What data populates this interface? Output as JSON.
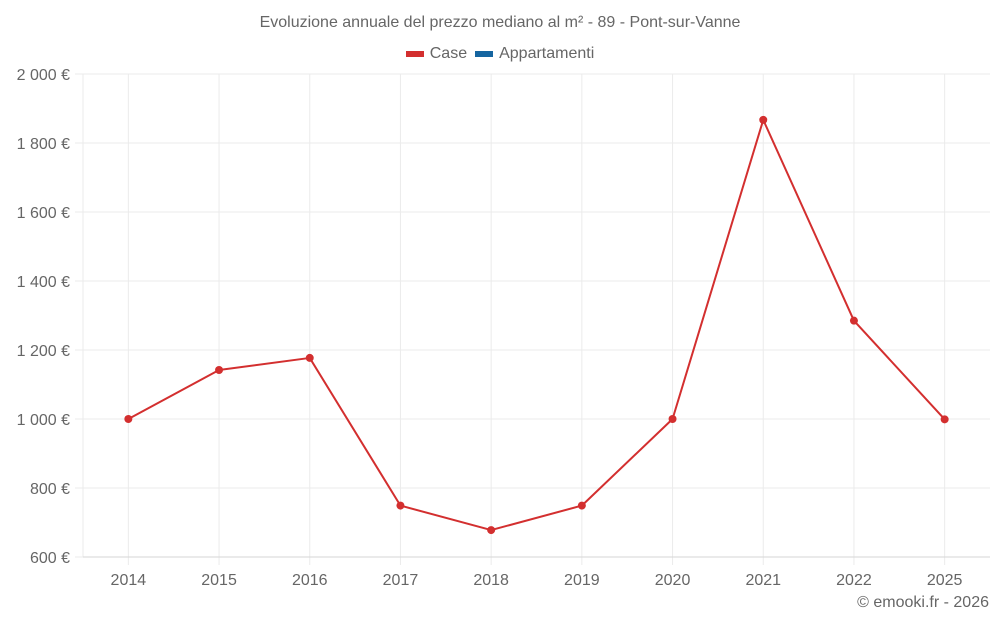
{
  "chart_data": {
    "type": "line",
    "title": "Evoluzione annuale del prezzo mediano al m² - 89 - Pont-sur-Vanne",
    "xlabel": "",
    "ylabel": "",
    "categories": [
      "2014",
      "2015",
      "2016",
      "2017",
      "2018",
      "2019",
      "2020",
      "2021",
      "2022",
      "2025"
    ],
    "series": [
      {
        "name": "Case",
        "color": "#d32f2f",
        "values": [
          1000,
          1142,
          1177,
          749,
          678,
          749,
          1000,
          1867,
          1285,
          999
        ]
      },
      {
        "name": "Appartamenti",
        "color": "#1565a0",
        "values": []
      }
    ],
    "ylim": [
      600,
      2000
    ],
    "yticks": [
      600,
      800,
      1000,
      1200,
      1400,
      1600,
      1800,
      2000
    ],
    "ytick_labels": [
      "600 €",
      "800 €",
      "1 000 €",
      "1 200 €",
      "1 400 €",
      "1 600 €",
      "1 800 €",
      "2 000 €"
    ],
    "grid": true,
    "legend_position": "top"
  },
  "header": {
    "title": "Evoluzione annuale del prezzo mediano al m² - 89 - Pont-sur-Vanne"
  },
  "legend": {
    "items": [
      {
        "label": "Case",
        "color": "#d32f2f"
      },
      {
        "label": "Appartamenti",
        "color": "#1565a0"
      }
    ]
  },
  "footer": {
    "credit": "© emooki.fr - 2026"
  }
}
